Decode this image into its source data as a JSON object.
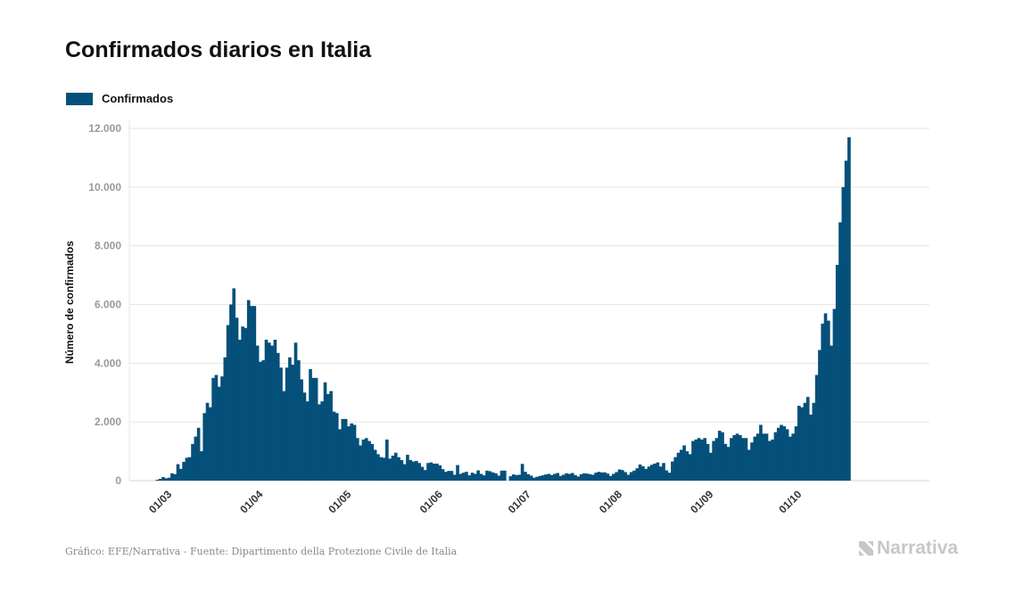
{
  "title": "Confirmados diarios en Italia",
  "legend": {
    "label": "Confirmados",
    "color": "#05507A"
  },
  "footer": {
    "source": "Gráfico: EFE/Narrativa - Fuente: Dipartimento della Protezione Civile de Italia"
  },
  "logo": {
    "text": "Narrativa",
    "icon": "narrativa-logo-icon"
  },
  "chart_data": {
    "type": "bar",
    "title": "Confirmados diarios en Italia",
    "ylabel": "Número de confirmados",
    "xlabel": "",
    "ylim": [
      0,
      12000
    ],
    "yticks": [
      0,
      2000,
      4000,
      6000,
      8000,
      10000,
      12000
    ],
    "ytick_labels": [
      "0",
      "2.000",
      "4.000",
      "6.000",
      "8.000",
      "10.000",
      "12.000"
    ],
    "xtick_labels": [
      "01/03",
      "01/04",
      "01/05",
      "01/06",
      "01/07",
      "01/08",
      "01/09",
      "01/10"
    ],
    "xtick_day_index": [
      7,
      38,
      68,
      99,
      129,
      160,
      191,
      221
    ],
    "x_start": "2020-02-23",
    "x_end": "2020-10-16",
    "grid": true,
    "legend_position": "top-left",
    "series": [
      {
        "name": "Confirmados",
        "color": "#05507A",
        "values": [
          0,
          0,
          30,
          60,
          120,
          80,
          100,
          250,
          220,
          560,
          400,
          640,
          780,
          800,
          1250,
          1500,
          1800,
          1000,
          2300,
          2650,
          2500,
          3500,
          3600,
          3200,
          3550,
          4200,
          5300,
          6000,
          6550,
          5550,
          4800,
          5250,
          5200,
          6150,
          5950,
          5950,
          4600,
          4050,
          4100,
          4800,
          4700,
          4600,
          4800,
          4350,
          3850,
          3050,
          3850,
          4200,
          3950,
          4700,
          4100,
          3450,
          3000,
          2700,
          3800,
          3500,
          3500,
          2600,
          2700,
          3350,
          2950,
          3050,
          2350,
          2300,
          1750,
          2100,
          2100,
          1850,
          1950,
          1900,
          1450,
          1200,
          1400,
          1450,
          1350,
          1250,
          1050,
          900,
          800,
          780,
          1400,
          750,
          850,
          950,
          800,
          700,
          560,
          880,
          700,
          650,
          670,
          600,
          470,
          360,
          600,
          620,
          580,
          580,
          520,
          390,
          300,
          330,
          330,
          200,
          530,
          230,
          270,
          300,
          180,
          270,
          230,
          350,
          230,
          180,
          340,
          320,
          280,
          250,
          170,
          340,
          340,
          0,
          150,
          210,
          190,
          200,
          570,
          300,
          220,
          170,
          100,
          130,
          160,
          180,
          210,
          230,
          190,
          230,
          260,
          160,
          200,
          250,
          230,
          260,
          190,
          140,
          220,
          250,
          240,
          220,
          200,
          270,
          300,
          280,
          280,
          240,
          160,
          230,
          290,
          380,
          360,
          290,
          200,
          290,
          340,
          420,
          550,
          490,
          400,
          480,
          540,
          580,
          620,
          480,
          600,
          350,
          270,
          650,
          800,
          950,
          1050,
          1200,
          1000,
          900,
          1350,
          1400,
          1450,
          1400,
          1450,
          1250,
          950,
          1350,
          1450,
          1700,
          1650,
          1250,
          1150,
          1450,
          1550,
          1600,
          1550,
          1450,
          1450,
          1050,
          1300,
          1500,
          1600,
          1900,
          1600,
          1600,
          1350,
          1400,
          1650,
          1800,
          1900,
          1850,
          1750,
          1500,
          1600,
          1850,
          2550,
          2500,
          2650,
          2850,
          2250,
          2650,
          3600,
          4450,
          5350,
          5700,
          5450,
          4600,
          5850,
          7350,
          8800,
          10000,
          10900,
          11700
        ]
      }
    ]
  }
}
